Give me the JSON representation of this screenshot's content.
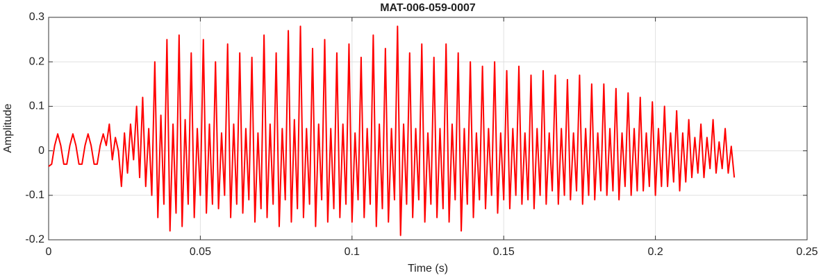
{
  "chart_data": {
    "type": "line",
    "title": "MAT-006-059-0007",
    "xlabel": "Time (s)",
    "ylabel": "Amplitude",
    "xlim": [
      0,
      0.25
    ],
    "xticks": [
      0,
      0.05,
      0.1,
      0.15,
      0.2,
      0.25
    ],
    "ylim": [
      -0.2,
      0.3
    ],
    "yticks": [
      -0.2,
      -0.1,
      0,
      0.1,
      0.2,
      0.3
    ],
    "grid": true,
    "x": [
      0,
      0.001,
      0.002,
      0.003,
      0.004,
      0.005,
      0.006,
      0.007,
      0.008,
      0.009,
      0.01,
      0.011,
      0.012,
      0.013,
      0.014,
      0.015,
      0.016,
      0.017,
      0.018,
      0.019,
      0.02,
      0.021,
      0.022,
      0.023,
      0.024,
      0.025,
      0.026,
      0.027,
      0.028,
      0.029,
      0.03,
      0.031,
      0.032,
      0.033,
      0.034,
      0.035,
      0.036,
      0.037,
      0.038,
      0.039,
      0.04,
      0.041,
      0.042,
      0.043,
      0.044,
      0.045,
      0.046,
      0.047,
      0.048,
      0.049,
      0.05,
      0.051,
      0.052,
      0.053,
      0.054,
      0.055,
      0.056,
      0.057,
      0.058,
      0.059,
      0.06,
      0.061,
      0.062,
      0.063,
      0.064,
      0.065,
      0.066,
      0.067,
      0.068,
      0.069,
      0.07,
      0.071,
      0.072,
      0.073,
      0.074,
      0.075,
      0.076,
      0.077,
      0.078,
      0.079,
      0.08,
      0.081,
      0.082,
      0.083,
      0.084,
      0.085,
      0.086,
      0.087,
      0.088,
      0.089,
      0.09,
      0.091,
      0.092,
      0.093,
      0.094,
      0.095,
      0.096,
      0.097,
      0.098,
      0.099,
      0.1,
      0.101,
      0.102,
      0.103,
      0.104,
      0.105,
      0.106,
      0.107,
      0.108,
      0.109,
      0.11,
      0.111,
      0.112,
      0.113,
      0.114,
      0.115,
      0.116,
      0.117,
      0.118,
      0.119,
      0.12,
      0.121,
      0.122,
      0.123,
      0.124,
      0.125,
      0.126,
      0.127,
      0.128,
      0.129,
      0.13,
      0.131,
      0.132,
      0.133,
      0.134,
      0.135,
      0.136,
      0.137,
      0.138,
      0.139,
      0.14,
      0.141,
      0.142,
      0.143,
      0.144,
      0.145,
      0.146,
      0.147,
      0.148,
      0.149,
      0.15,
      0.151,
      0.152,
      0.153,
      0.154,
      0.155,
      0.156,
      0.157,
      0.158,
      0.159,
      0.16,
      0.161,
      0.162,
      0.163,
      0.164,
      0.165,
      0.166,
      0.167,
      0.168,
      0.169,
      0.17,
      0.171,
      0.172,
      0.173,
      0.174,
      0.175,
      0.176,
      0.177,
      0.178,
      0.179,
      0.18,
      0.181,
      0.182,
      0.183,
      0.184,
      0.185,
      0.186,
      0.187,
      0.188,
      0.189,
      0.19,
      0.191,
      0.192,
      0.193,
      0.194,
      0.195,
      0.196,
      0.197,
      0.198,
      0.199,
      0.2,
      0.201,
      0.202,
      0.203,
      0.204,
      0.205,
      0.206,
      0.207,
      0.208,
      0.209,
      0.21,
      0.211,
      0.212,
      0.213,
      0.214,
      0.215,
      0.216,
      0.217,
      0.218,
      0.219,
      0.22,
      0.221,
      0.222,
      0.223,
      0.224,
      0.225,
      0.226
    ],
    "series": [
      {
        "color": "#ff0000",
        "values": [
          -0.035,
          -0.03,
          0.012,
          0.038,
          0.012,
          -0.03,
          -0.03,
          0.012,
          0.038,
          0.012,
          -0.03,
          -0.03,
          0.012,
          0.038,
          0.012,
          -0.03,
          -0.03,
          0.012,
          0.038,
          0.012,
          0.06,
          -0.02,
          0.03,
          0,
          -0.08,
          0.04,
          -0.05,
          0.06,
          -0.02,
          0.1,
          -0.06,
          0.12,
          -0.08,
          0.05,
          -0.1,
          0.2,
          -0.15,
          0.08,
          -0.12,
          0.25,
          -0.18,
          0.06,
          -0.14,
          0.26,
          -0.17,
          0.07,
          -0.12,
          0.22,
          -0.15,
          0.05,
          -0.1,
          0.25,
          -0.14,
          0.06,
          -0.12,
          0.2,
          -0.13,
          0.04,
          -0.1,
          0.24,
          -0.15,
          0.06,
          -0.12,
          0.22,
          -0.14,
          0.05,
          -0.11,
          0.21,
          -0.16,
          0.04,
          -0.13,
          0.26,
          -0.15,
          0.06,
          -0.12,
          0.22,
          -0.17,
          0.05,
          -0.11,
          0.27,
          -0.16,
          0.07,
          -0.13,
          0.28,
          -0.15,
          0.05,
          -0.12,
          0.23,
          -0.17,
          0.06,
          -0.11,
          0.25,
          -0.16,
          0.05,
          -0.13,
          0.22,
          -0.15,
          0.06,
          -0.12,
          0.24,
          -0.16,
          0.04,
          -0.11,
          0.21,
          -0.15,
          0.05,
          -0.12,
          0.26,
          -0.17,
          0.06,
          -0.13,
          0.23,
          -0.16,
          0.05,
          -0.11,
          0.28,
          -0.19,
          0.06,
          -0.12,
          0.22,
          -0.15,
          0.05,
          -0.11,
          0.24,
          -0.16,
          0.04,
          -0.12,
          0.21,
          -0.15,
          0.05,
          -0.13,
          0.24,
          -0.16,
          0.06,
          -0.11,
          0.22,
          -0.18,
          0.05,
          -0.12,
          0.2,
          -0.15,
          0.04,
          -0.11,
          0.19,
          -0.13,
          0.05,
          -0.1,
          0.2,
          -0.14,
          0.04,
          -0.11,
          0.18,
          -0.13,
          0.05,
          -0.1,
          0.19,
          -0.12,
          0.04,
          -0.11,
          0.17,
          -0.13,
          0.05,
          -0.1,
          0.18,
          -0.12,
          0.04,
          -0.09,
          0.17,
          -0.12,
          0.05,
          -0.1,
          0.16,
          -0.11,
          0.04,
          -0.09,
          0.17,
          -0.12,
          0.05,
          -0.1,
          0.15,
          -0.11,
          0.04,
          -0.09,
          0.15,
          -0.1,
          0.05,
          -0.09,
          0.14,
          -0.11,
          0.04,
          -0.08,
          0.13,
          -0.1,
          0.05,
          -0.09,
          0.12,
          -0.09,
          0.04,
          -0.08,
          0.11,
          -0.1,
          0.05,
          -0.08,
          0.1,
          -0.08,
          0.04,
          -0.07,
          0.09,
          -0.09,
          0.04,
          -0.07,
          0.07,
          -0.06,
          0.03,
          -0.05,
          0.06,
          -0.06,
          0.03,
          -0.04,
          0.07,
          -0.05,
          0.02,
          -0.04,
          0.05,
          -0.05,
          0.01,
          -0.06
        ]
      }
    ]
  }
}
